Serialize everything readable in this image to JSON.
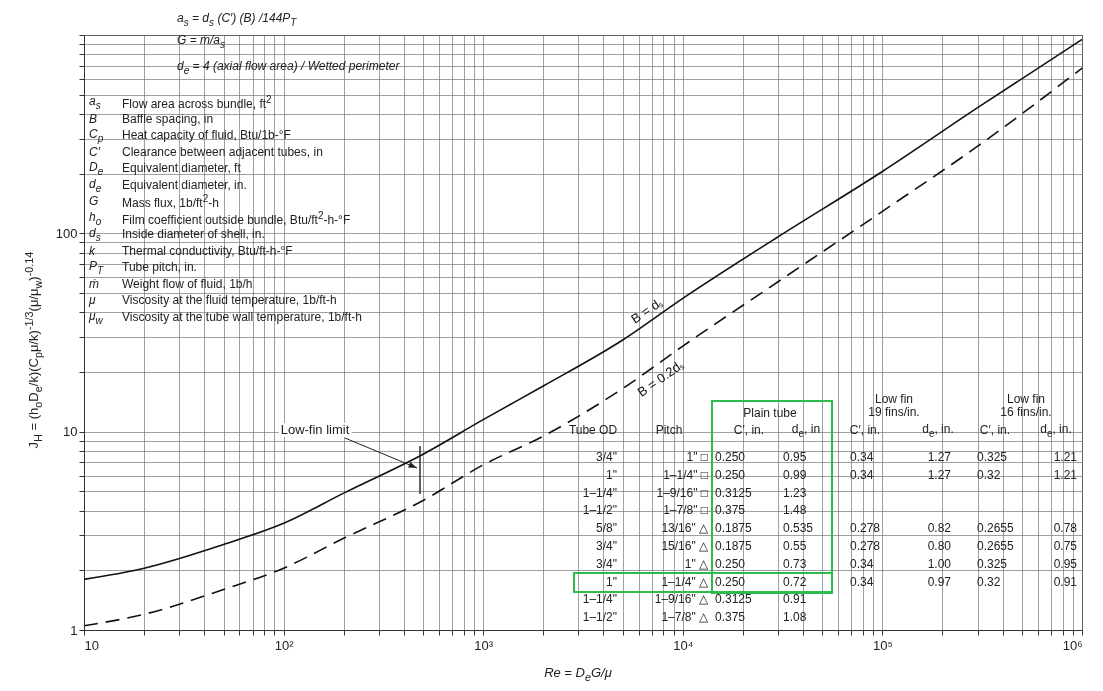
{
  "chart_data": {
    "type": "line",
    "xlabel": "Re = D$_{e}$G/μ",
    "ylabel": "J$_{H}$ = (h$_{o}$D$_{e}$/k)(C$_{p}$μ/k)$^{-1/3}$(μ/μ$_{w}$)$^{-0.14}$",
    "log": "xy",
    "grid": true,
    "xlim": [
      10,
      1000000
    ],
    "ylim": [
      1,
      1000
    ],
    "xticks": [
      10,
      {
        "value": 20,
        "label": null
      },
      {
        "value": 30,
        "label": null
      },
      {
        "value": 40,
        "label": null
      },
      {
        "value": 50,
        "label": null
      },
      {
        "value": 60,
        "label": null
      },
      {
        "value": 70,
        "label": null
      },
      {
        "value": 80,
        "label": null
      },
      {
        "value": 90,
        "label": null
      },
      {
        "value": 100,
        "label": "10²"
      },
      {
        "value": 200,
        "label": null
      },
      {
        "value": 300,
        "label": null
      },
      {
        "value": 400,
        "label": null
      },
      {
        "value": 500,
        "label": null
      },
      {
        "value": 600,
        "label": null
      },
      {
        "value": 700,
        "label": null
      },
      {
        "value": 800,
        "label": null
      },
      {
        "value": 900,
        "label": null
      },
      {
        "value": 1000,
        "label": "10³"
      },
      {
        "value": 2000,
        "label": null
      },
      {
        "value": 3000,
        "label": null
      },
      {
        "value": 4000,
        "label": null
      },
      {
        "value": 5000,
        "label": null
      },
      {
        "value": 6000,
        "label": null
      },
      {
        "value": 7000,
        "label": null
      },
      {
        "value": 8000,
        "label": null
      },
      {
        "value": 9000,
        "label": null
      },
      {
        "value": 10000,
        "label": "10⁴"
      },
      {
        "value": 20000,
        "label": null
      },
      {
        "value": 30000,
        "label": null
      },
      {
        "value": 40000,
        "label": null
      },
      {
        "value": 50000,
        "label": null
      },
      {
        "value": 60000,
        "label": null
      },
      {
        "value": 70000,
        "label": null
      },
      {
        "value": 80000,
        "label": null
      },
      {
        "value": 90000,
        "label": null
      },
      {
        "value": 100000,
        "label": "10⁵"
      },
      {
        "value": 200000,
        "label": null
      },
      {
        "value": 300000,
        "label": null
      },
      {
        "value": 400000,
        "label": null
      },
      {
        "value": 500000,
        "label": null
      },
      {
        "value": 600000,
        "label": null
      },
      {
        "value": 700000,
        "label": null
      },
      {
        "value": 800000,
        "label": null
      },
      {
        "value": 900000,
        "label": null
      },
      {
        "value": 1000000,
        "label": "10⁶"
      }
    ],
    "yticks": [
      1,
      {
        "value": 2,
        "label": null
      },
      {
        "value": 3,
        "label": null
      },
      {
        "value": 4,
        "label": null
      },
      {
        "value": 5,
        "label": null
      },
      {
        "value": 6,
        "label": null
      },
      {
        "value": 7,
        "label": null
      },
      {
        "value": 8,
        "label": null
      },
      {
        "value": 9,
        "label": null
      },
      10,
      {
        "value": 20,
        "label": null
      },
      {
        "value": 30,
        "label": null
      },
      {
        "value": 40,
        "label": null
      },
      {
        "value": 50,
        "label": null
      },
      {
        "value": 60,
        "label": null
      },
      {
        "value": 70,
        "label": null
      },
      {
        "value": 80,
        "label": null
      },
      {
        "value": 90,
        "label": null
      },
      100,
      {
        "value": 200,
        "label": null
      },
      {
        "value": 300,
        "label": null
      },
      {
        "value": 400,
        "label": null
      },
      {
        "value": 500,
        "label": null
      },
      {
        "value": 600,
        "label": null
      },
      {
        "value": 700,
        "label": null
      },
      {
        "value": 800,
        "label": null
      },
      {
        "value": 900,
        "label": null
      },
      {
        "value": 1000,
        "label": null
      }
    ],
    "series": [
      {
        "name": "B = dₛ",
        "color": "#111111",
        "line_style": "solid",
        "x": [
          10,
          20,
          50,
          100,
          200,
          500,
          1000,
          2000,
          5000,
          10000,
          30000,
          100000,
          300000,
          1000000
        ],
        "values": [
          1.8,
          2.05,
          2.7,
          3.45,
          4.9,
          7.7,
          11.5,
          17,
          29,
          47,
          96,
          205,
          430,
          950
        ]
      },
      {
        "name": "B = 0.2dₛ",
        "color": "#111111",
        "line_style": "dashed",
        "x": [
          10,
          20,
          50,
          100,
          200,
          500,
          1000,
          2000,
          5000,
          10000,
          30000,
          100000,
          300000,
          1000000
        ],
        "values": [
          1.05,
          1.2,
          1.6,
          2.05,
          2.9,
          4.5,
          6.8,
          9.5,
          16.5,
          27,
          57,
          129,
          275,
          680
        ]
      }
    ],
    "annotations": [
      "a$_{s}$ = d$_{s}$ (C′) (B) /144P$_{T}$",
      "G = ṁ/a$_{s}$",
      "d$_{e}$ = 4 (axial flow area) / Wetted perimeter",
      "a$_{s}$ Flow area across bundle, ft$^{2}$",
      "B Baffle spacing, in",
      "C$_{p}$ Heat capacity of fluid, Btu/1b-°F",
      "C′ Clearance between adjacent tubes, in",
      "D$_{e}$ Equivalent diameter, ft",
      "d$_{e}$ Equivalent diameter, in.",
      "G Mass flux, 1b/ft$^{2}$-h",
      "h$_{o}$ Film coefficient outside bundle, Btu/ft$^{2}$-h-°F",
      "d$_{s}$ Inside diameter of shell, in.",
      "k Thermal conductivity, Btu/ft-h-°F",
      "P$_{T}$ Tube pitch, in.",
      "ṁ Weight flow of fluid, 1b/h",
      "μ Viscosity at the fluid temperature, 1b/ft-h",
      "μ$_{w}$ Viscosity at the tube wall temperature, 1b/ft-h",
      "Low-fin limit",
      "Plain tube",
      "Low fin\n19 fins/in.",
      "Low fin\n16 fins/in.",
      "Tube OD",
      "Pitch",
      "C′, in.",
      "d$_{e}$, in",
      "C′, in.",
      "d$_{e}$, in.",
      "C′, in.",
      "d$_{e}$, in.",
      "3/4\"",
      "1\" □",
      "0.250",
      "0.95",
      "0.34",
      "1.27",
      "0.325",
      "1.21",
      "1\"",
      "1–1/4\" □",
      "0.250",
      "0.99",
      "0.34",
      "1.27",
      "0.32",
      "1.21",
      "1–1/4\"",
      "1–9/16\" □",
      "0.3125",
      "1.23",
      "1–1/2\"",
      "1–7/8\" □",
      "0.375",
      "1.48",
      "5/8\"",
      "13/16\" △",
      "0.1875",
      "0.535",
      "0.278",
      "0.82",
      "0.2655",
      "0.78",
      "3/4\"",
      "15/16\" △",
      "0.1875",
      "0.55",
      "0.278",
      "0.80",
      "0.2655",
      "0.75",
      "3/4\"",
      "1\" △",
      "0.250",
      "0.73",
      "0.34",
      "1.00",
      "0.325",
      "0.95",
      "1\"",
      "1–1/4\" △",
      "0.250",
      "0.72",
      "0.34",
      "0.97",
      "0.32",
      "0.91",
      "1–1/4\"",
      "1–9/16\" △",
      "0.3125",
      "0.91",
      "1–1/2\"",
      "1–7/8\" △",
      "0.375",
      "1.08"
    ]
  }
}
